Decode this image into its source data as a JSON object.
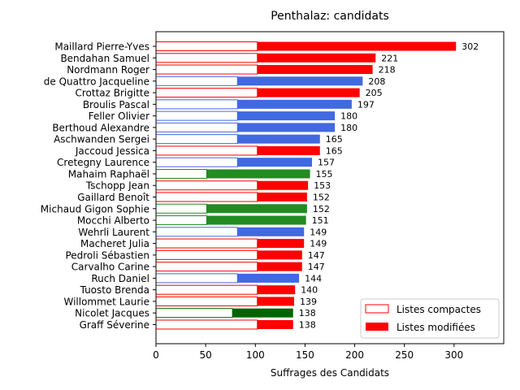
{
  "chart_data": {
    "type": "bar",
    "orientation": "horizontal",
    "stacked": true,
    "title": "Penthalaz: candidats",
    "xlabel": "Suffrages des Candidats",
    "ylabel": "",
    "xlim": [
      0,
      350
    ],
    "xticks": [
      0,
      50,
      100,
      150,
      200,
      250,
      300
    ],
    "legend": {
      "placement": "bottom-right",
      "entries": [
        {
          "label": "Listes compactes",
          "style": "outline",
          "color": "#ff0000"
        },
        {
          "label": "Listes modifiées",
          "style": "filled",
          "color": "#ff0000"
        }
      ]
    },
    "categories": [
      "Maillard Pierre-Yves",
      "Bendahan Samuel",
      "Nordmann Roger",
      "de Quattro Jacqueline",
      "Crottaz Brigitte",
      "Broulis Pascal",
      "Feller Olivier",
      "Berthoud Alexandre",
      "Aschwanden Sergei",
      "Jaccoud Jessica",
      "Cretegny Laurence",
      "Mahaim Raphaël",
      "Tschopp Jean",
      "Gaillard Benoît",
      "Michaud Gigon Sophie",
      "Mocchi Alberto",
      "Wehrli Laurent",
      "Macheret Julia",
      "Pedroli Sébastien",
      "Carvalho Carine",
      "Ruch Daniel",
      "Tuosto Brenda",
      "Willommet Laurie",
      "Nicolet Jacques",
      "Graff Séverine"
    ],
    "series": [
      {
        "name": "Listes compactes",
        "values": [
          102,
          102,
          102,
          82,
          102,
          82,
          82,
          82,
          82,
          102,
          82,
          51,
          102,
          102,
          51,
          51,
          82,
          102,
          102,
          102,
          82,
          102,
          102,
          77,
          102
        ]
      },
      {
        "name": "Listes modifiées",
        "values": [
          200,
          119,
          116,
          126,
          103,
          115,
          98,
          98,
          83,
          63,
          75,
          104,
          51,
          50,
          101,
          100,
          67,
          47,
          45,
          45,
          62,
          38,
          37,
          61,
          36
        ]
      }
    ],
    "totals": [
      302,
      221,
      218,
      208,
      205,
      197,
      180,
      180,
      165,
      165,
      157,
      155,
      153,
      152,
      152,
      151,
      149,
      149,
      147,
      147,
      144,
      140,
      139,
      138,
      138
    ],
    "colors": [
      "#ff0000",
      "#ff0000",
      "#ff0000",
      "#4169e1",
      "#ff0000",
      "#4169e1",
      "#4169e1",
      "#4169e1",
      "#4169e1",
      "#ff0000",
      "#4169e1",
      "#228b22",
      "#ff0000",
      "#ff0000",
      "#228b22",
      "#228b22",
      "#4169e1",
      "#ff0000",
      "#ff0000",
      "#ff0000",
      "#4169e1",
      "#ff0000",
      "#ff0000",
      "#006400",
      "#ff0000"
    ]
  }
}
